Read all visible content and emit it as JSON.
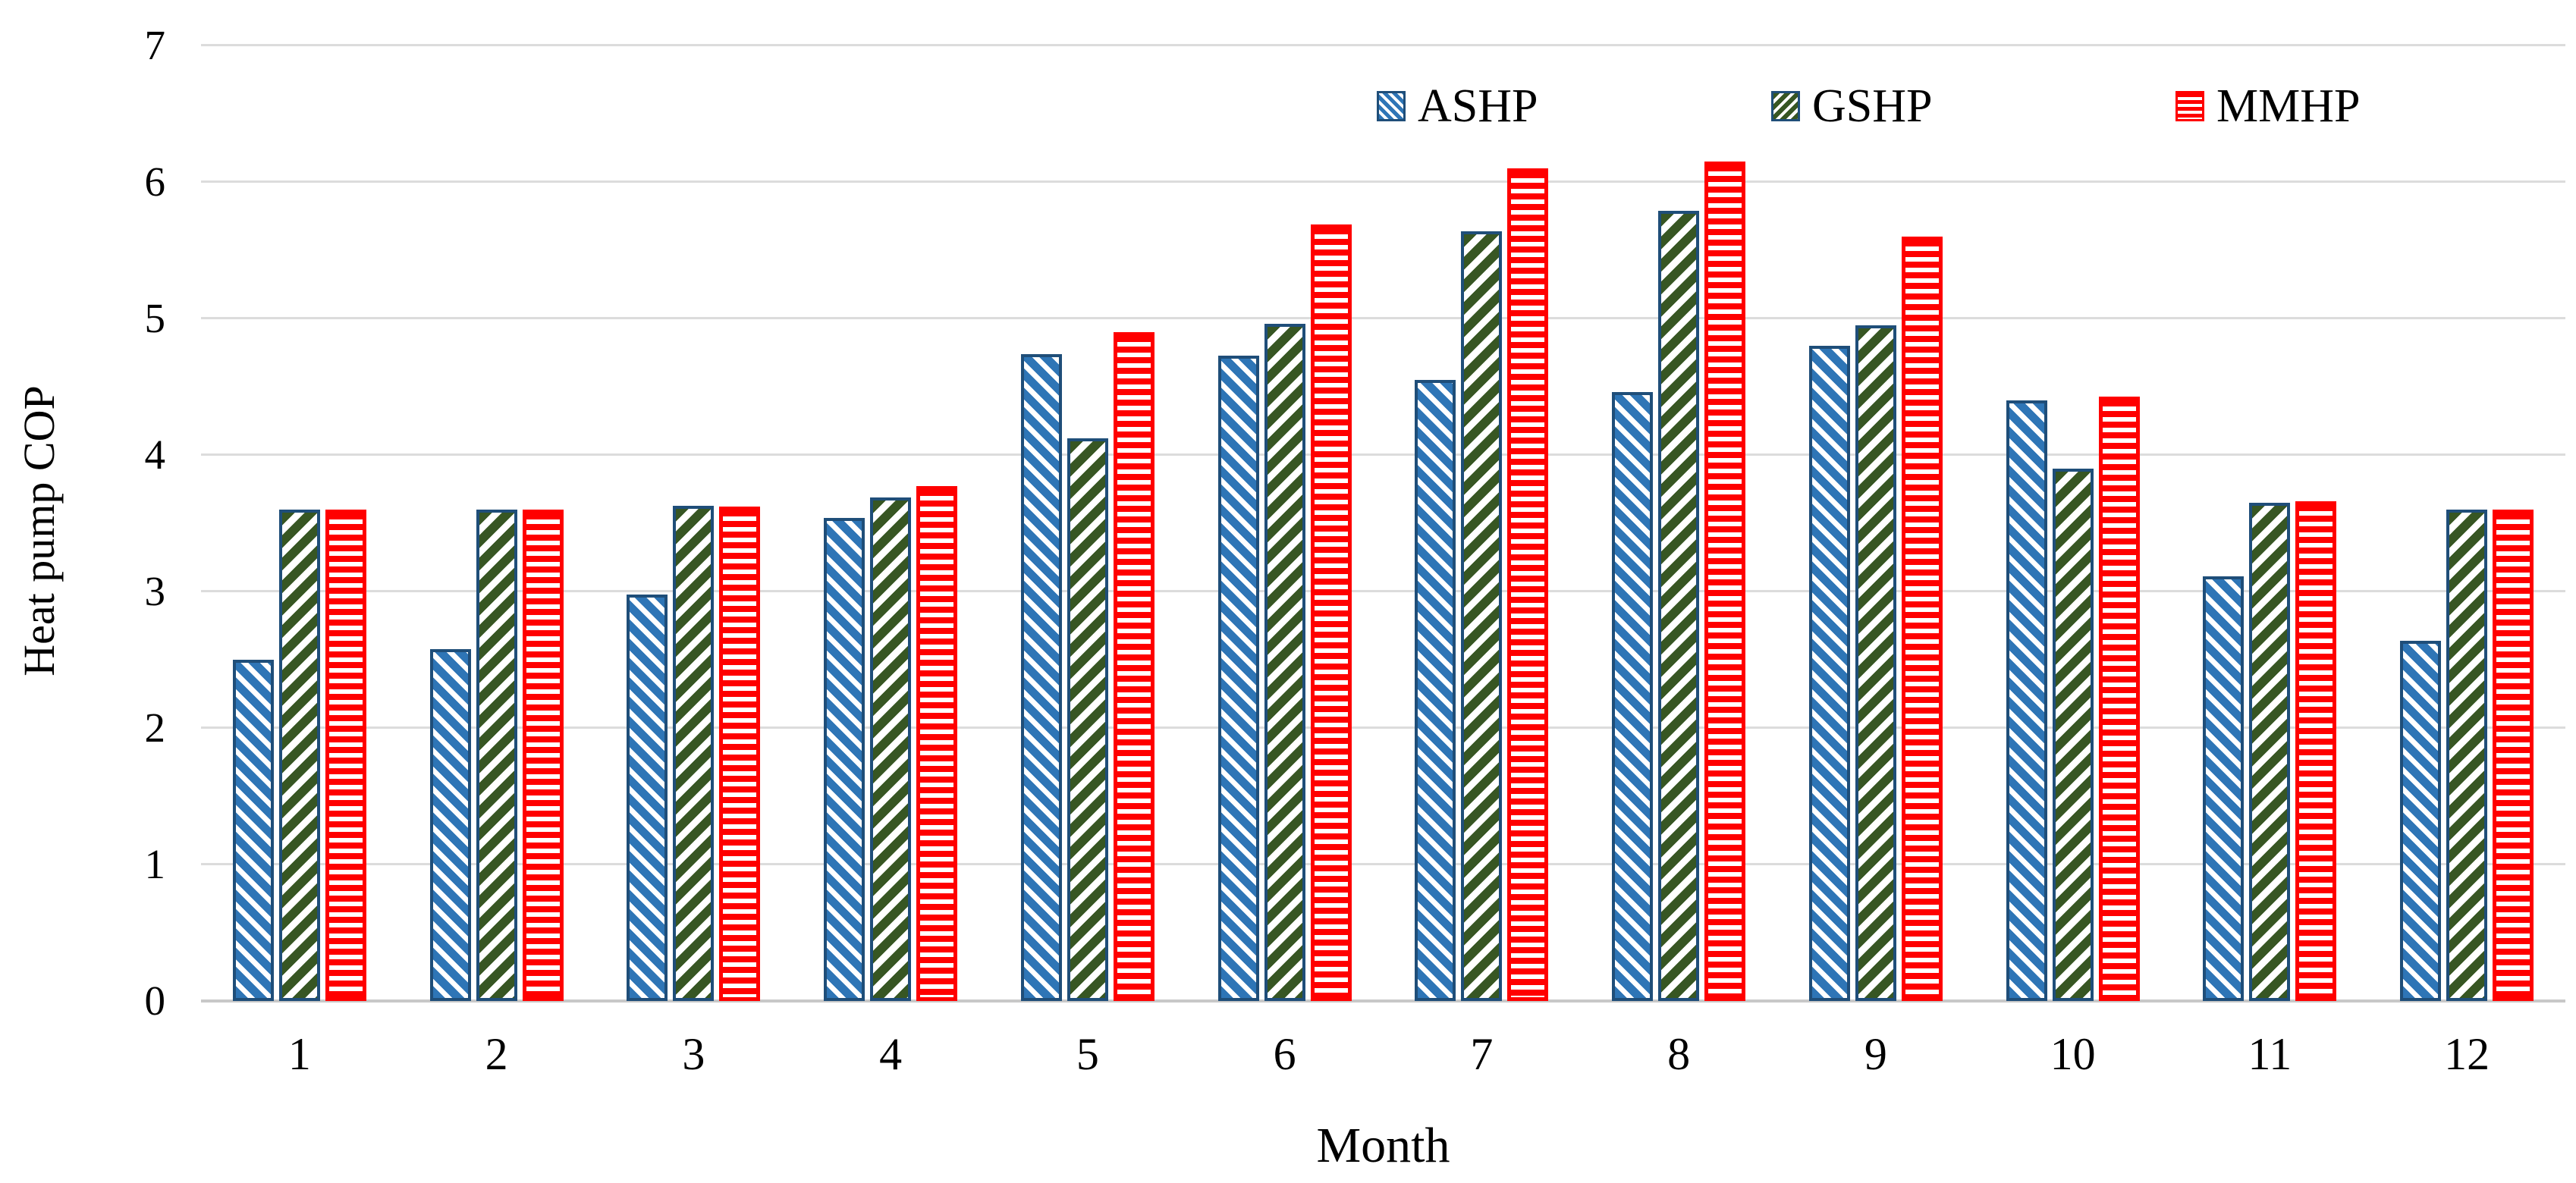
{
  "chart_data": {
    "type": "bar",
    "title": "",
    "xlabel": "Month",
    "ylabel": "Heat pump COP",
    "categories": [
      "1",
      "2",
      "3",
      "4",
      "5",
      "6",
      "7",
      "8",
      "9",
      "10",
      "11",
      "12"
    ],
    "series": [
      {
        "name": "ASHP",
        "pattern": "diagonal-down",
        "fill": "#2E75B6",
        "outline": "#1F4E79",
        "values": [
          2.5,
          2.58,
          2.98,
          3.54,
          4.74,
          4.73,
          4.55,
          4.46,
          4.8,
          4.4,
          3.11,
          2.64
        ]
      },
      {
        "name": "GSHP",
        "pattern": "diagonal-up",
        "fill": "#375623",
        "outline": "#1F4E79",
        "values": [
          3.6,
          3.6,
          3.63,
          3.69,
          4.12,
          4.96,
          5.64,
          5.79,
          4.95,
          3.9,
          3.65,
          3.6
        ]
      },
      {
        "name": "MMHP",
        "pattern": "horizontal",
        "fill": "#FF0000",
        "outline": "#FF0000",
        "values": [
          3.6,
          3.6,
          3.62,
          3.77,
          4.9,
          5.69,
          6.1,
          6.15,
          5.6,
          4.43,
          3.66,
          3.6
        ]
      }
    ],
    "ylim": [
      0,
      7
    ],
    "yticks": [
      "0",
      "1",
      "2",
      "3",
      "4",
      "5",
      "6",
      "7"
    ],
    "grid": true,
    "legend_position": "top-right",
    "background": "#FFFFFF",
    "gridline_color": "#DCDCDC",
    "axis_line_color": "#C8C8C8",
    "text_color": "#000000"
  }
}
